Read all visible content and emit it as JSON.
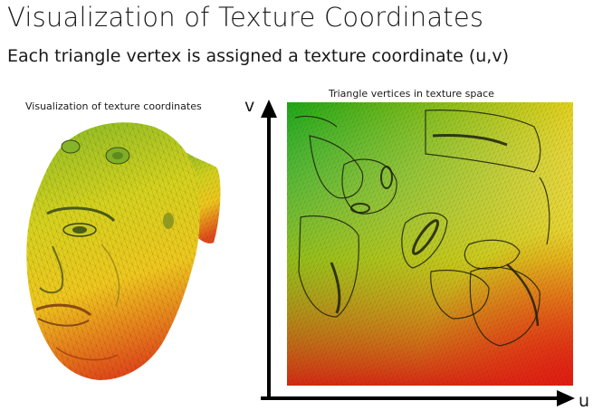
{
  "slide": {
    "title": "Visualization of Texture Coordinates",
    "subtitle": "Each triangle vertex is assigned a texture coordinate (u,v)"
  },
  "left_panel": {
    "caption": "Visualization of texture coordinates",
    "image": "ogre-head-mesh colored by texture coordinates"
  },
  "right_panel": {
    "caption": "Triangle vertices in texture space",
    "axis_v_label": "v",
    "axis_u_label": "u",
    "image": "unwrapped triangle mesh in uv texture space"
  },
  "colors": {
    "uv_top_left": "#1ea815",
    "uv_top_right": "#e7d31c",
    "uv_bottom_left": "#e8c31d",
    "uv_bottom_right": "#e51a12",
    "axis": "#000000"
  }
}
